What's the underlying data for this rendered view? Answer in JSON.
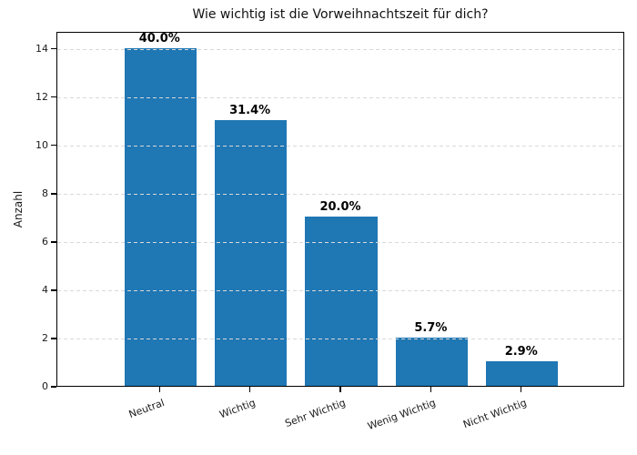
{
  "chart_data": {
    "type": "bar",
    "title": "Wie wichtig ist die Vorweihnachtszeit für dich?",
    "xlabel": "",
    "ylabel": "Anzahl",
    "categories": [
      "Neutral",
      "Wichtig",
      "Sehr Wichtig",
      "Wenig Wichtig",
      "Nicht Wichtig"
    ],
    "values": [
      14,
      11,
      7,
      2,
      1
    ],
    "bar_labels": [
      "40.0%",
      "31.4%",
      "20.0%",
      "5.7%",
      "2.9%"
    ],
    "yticks": [
      0,
      2,
      4,
      6,
      8,
      10,
      12,
      14
    ],
    "ylim": [
      0,
      14.7
    ],
    "bar_color": "#1f77b4",
    "grid": "horizontal dashed, drawn above bars",
    "grid_color": "#d9d9d9",
    "legend_position": "none",
    "background_color": "#ffffff",
    "text_color": "#1a1a1a"
  }
}
